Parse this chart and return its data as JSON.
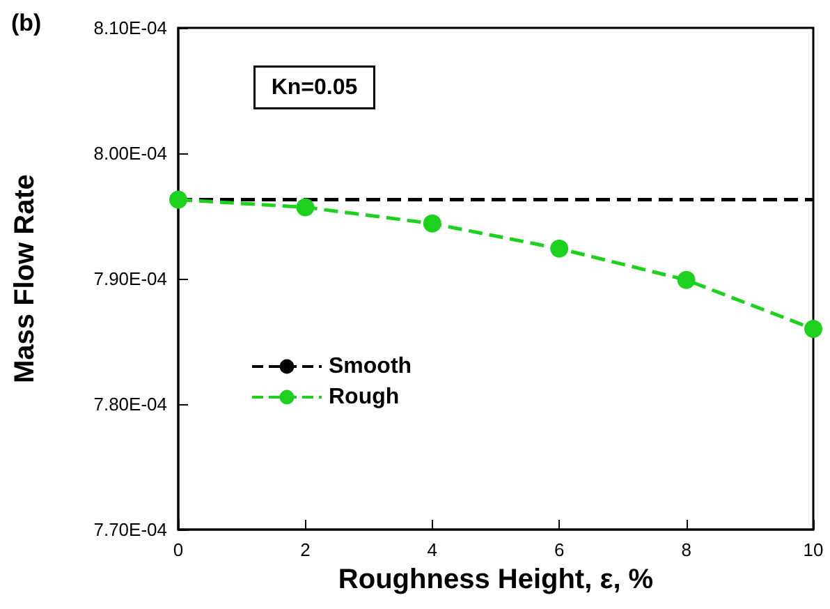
{
  "chart_data": {
    "type": "line",
    "xlabel": "Roughness Height, ε, %",
    "ylabel": "Mass Flow Rate",
    "annotations": [
      "(b)",
      "Kn=0.05"
    ],
    "x": [
      0,
      2,
      4,
      6,
      8,
      10
    ],
    "series": [
      {
        "name": "Smooth",
        "color": "#000000",
        "marker": "none",
        "values": [
          0.0007963,
          0.0007963,
          0.0007963,
          0.0007963,
          0.0007963,
          0.0007963
        ]
      },
      {
        "name": "Rough",
        "color": "#1fd11f",
        "values": [
          0.0007963,
          0.0007957,
          0.0007944,
          0.0007924,
          0.0007899,
          0.000786
        ]
      }
    ],
    "xlim": [
      0,
      10
    ],
    "xticks": [
      0,
      2,
      4,
      6,
      8,
      10
    ],
    "ylim": [
      0.00077,
      0.00081
    ],
    "yticks": [
      {
        "value": 0.00077,
        "label": "7.70E-04"
      },
      {
        "value": 0.00078,
        "label": "7.80E-04"
      },
      {
        "value": 0.00079,
        "label": "7.90E-04"
      },
      {
        "value": 0.0008,
        "label": "8.00E-04"
      },
      {
        "value": 0.00081,
        "label": "8.10E-04"
      }
    ],
    "grid": false,
    "legend": "bottom left",
    "marker": "circle",
    "line_style": "dashed"
  }
}
